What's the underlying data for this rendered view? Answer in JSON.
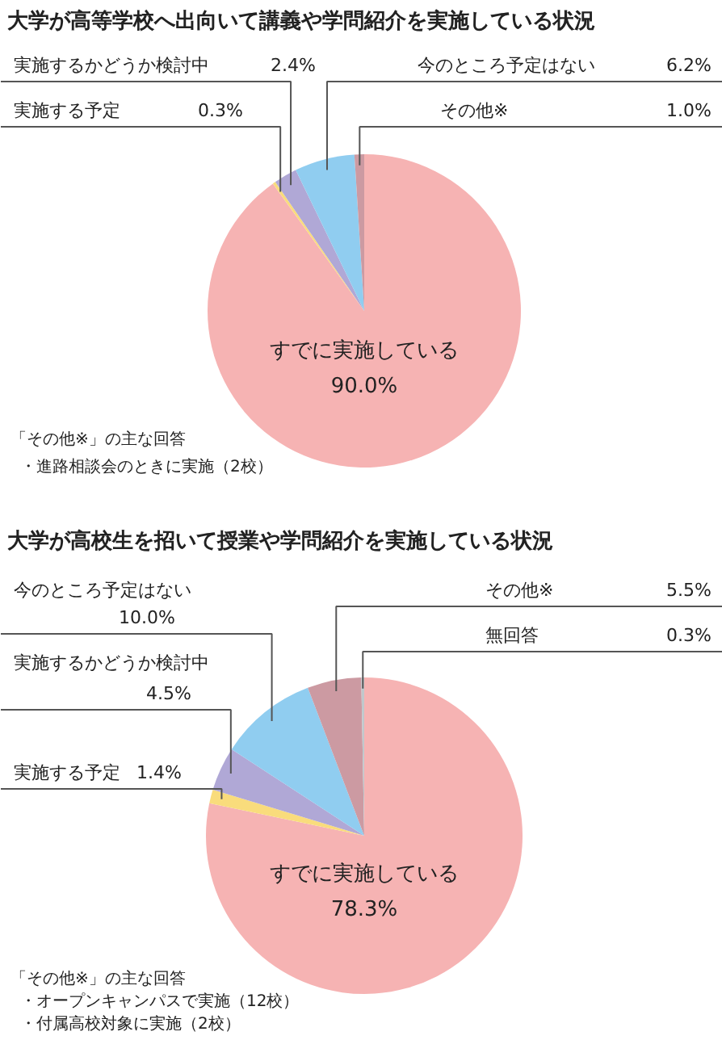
{
  "chart_data": [
    {
      "type": "pie",
      "title": "大学が高等学校へ出向いて講義や学問紹介を実施している状況",
      "categories": [
        "すでに実施している",
        "実施する予定",
        "実施するかどうか検討中",
        "今のところ予定はない",
        "その他※"
      ],
      "values": [
        90.0,
        0.3,
        2.4,
        6.2,
        1.0
      ],
      "value_labels": [
        "90.0%",
        "0.3%",
        "2.4%",
        "6.2%",
        "1.0%"
      ],
      "colors": [
        "#f6b3b3",
        "#f9dc7c",
        "#b0a8d6",
        "#90cdf0",
        "#cc9aa2"
      ],
      "annotations": [
        "「その他※」の主な回答",
        "・進路相談会のときに実施（2校）"
      ]
    },
    {
      "type": "pie",
      "title": "大学が高校生を招いて授業や学問紹介を実施している状況",
      "categories": [
        "すでに実施している",
        "実施する予定",
        "実施するかどうか検討中",
        "今のところ予定はない",
        "その他※",
        "無回答"
      ],
      "values": [
        78.3,
        1.4,
        4.5,
        10.0,
        5.5,
        0.3
      ],
      "value_labels": [
        "78.3%",
        "1.4%",
        "4.5%",
        "10.0%",
        "5.5%",
        "0.3%"
      ],
      "colors": [
        "#f6b3b3",
        "#f9dc7c",
        "#b0a8d6",
        "#90cdf0",
        "#cc9aa2",
        "#c0c8cc"
      ],
      "annotations": [
        "「その他※」の主な回答",
        "・オープンキャンパスで実施（12校）",
        "・付属高校対象に実施（2校）"
      ]
    }
  ]
}
